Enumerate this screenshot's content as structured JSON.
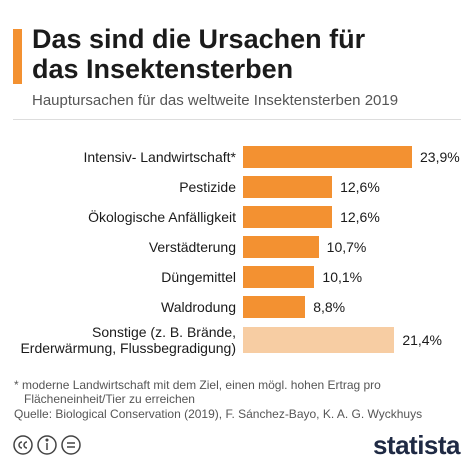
{
  "chart_data": {
    "type": "bar",
    "orientation": "horizontal",
    "title": "Das sind die Ursachen für das Insektensterben",
    "subtitle": "Hauptursachen für das weltweite Insektensterben 2019",
    "categories": [
      "Intensiv- Landwirtschaft*",
      "Pestizide",
      "Ökologische Anfälligkeit",
      "Verstädterung",
      "Düngemittel",
      "Waldrodung",
      "Sonstige (z. B. Brände, Erderwärmung, Flussbegradigung)"
    ],
    "values": [
      23.9,
      12.6,
      12.6,
      10.7,
      10.1,
      8.8,
      21.4
    ],
    "value_labels": [
      "23,9%",
      "12,6%",
      "12,6%",
      "10,7%",
      "10,1%",
      "8,8%",
      "21,4%"
    ],
    "colors": [
      "#f39131",
      "#f39131",
      "#f39131",
      "#f39131",
      "#f39131",
      "#f39131",
      "#f7cda3"
    ],
    "footnote": "* moderne Landwirtschaft mit dem Ziel, einen mögl. hohen Ertrag pro Flächeneinheit/Tier zu erreichen",
    "source": "Quelle: Biological Conservation (2019), F. Sánchez-Bayo, K. A. G. Wyckhuys",
    "brand": "statista"
  }
}
